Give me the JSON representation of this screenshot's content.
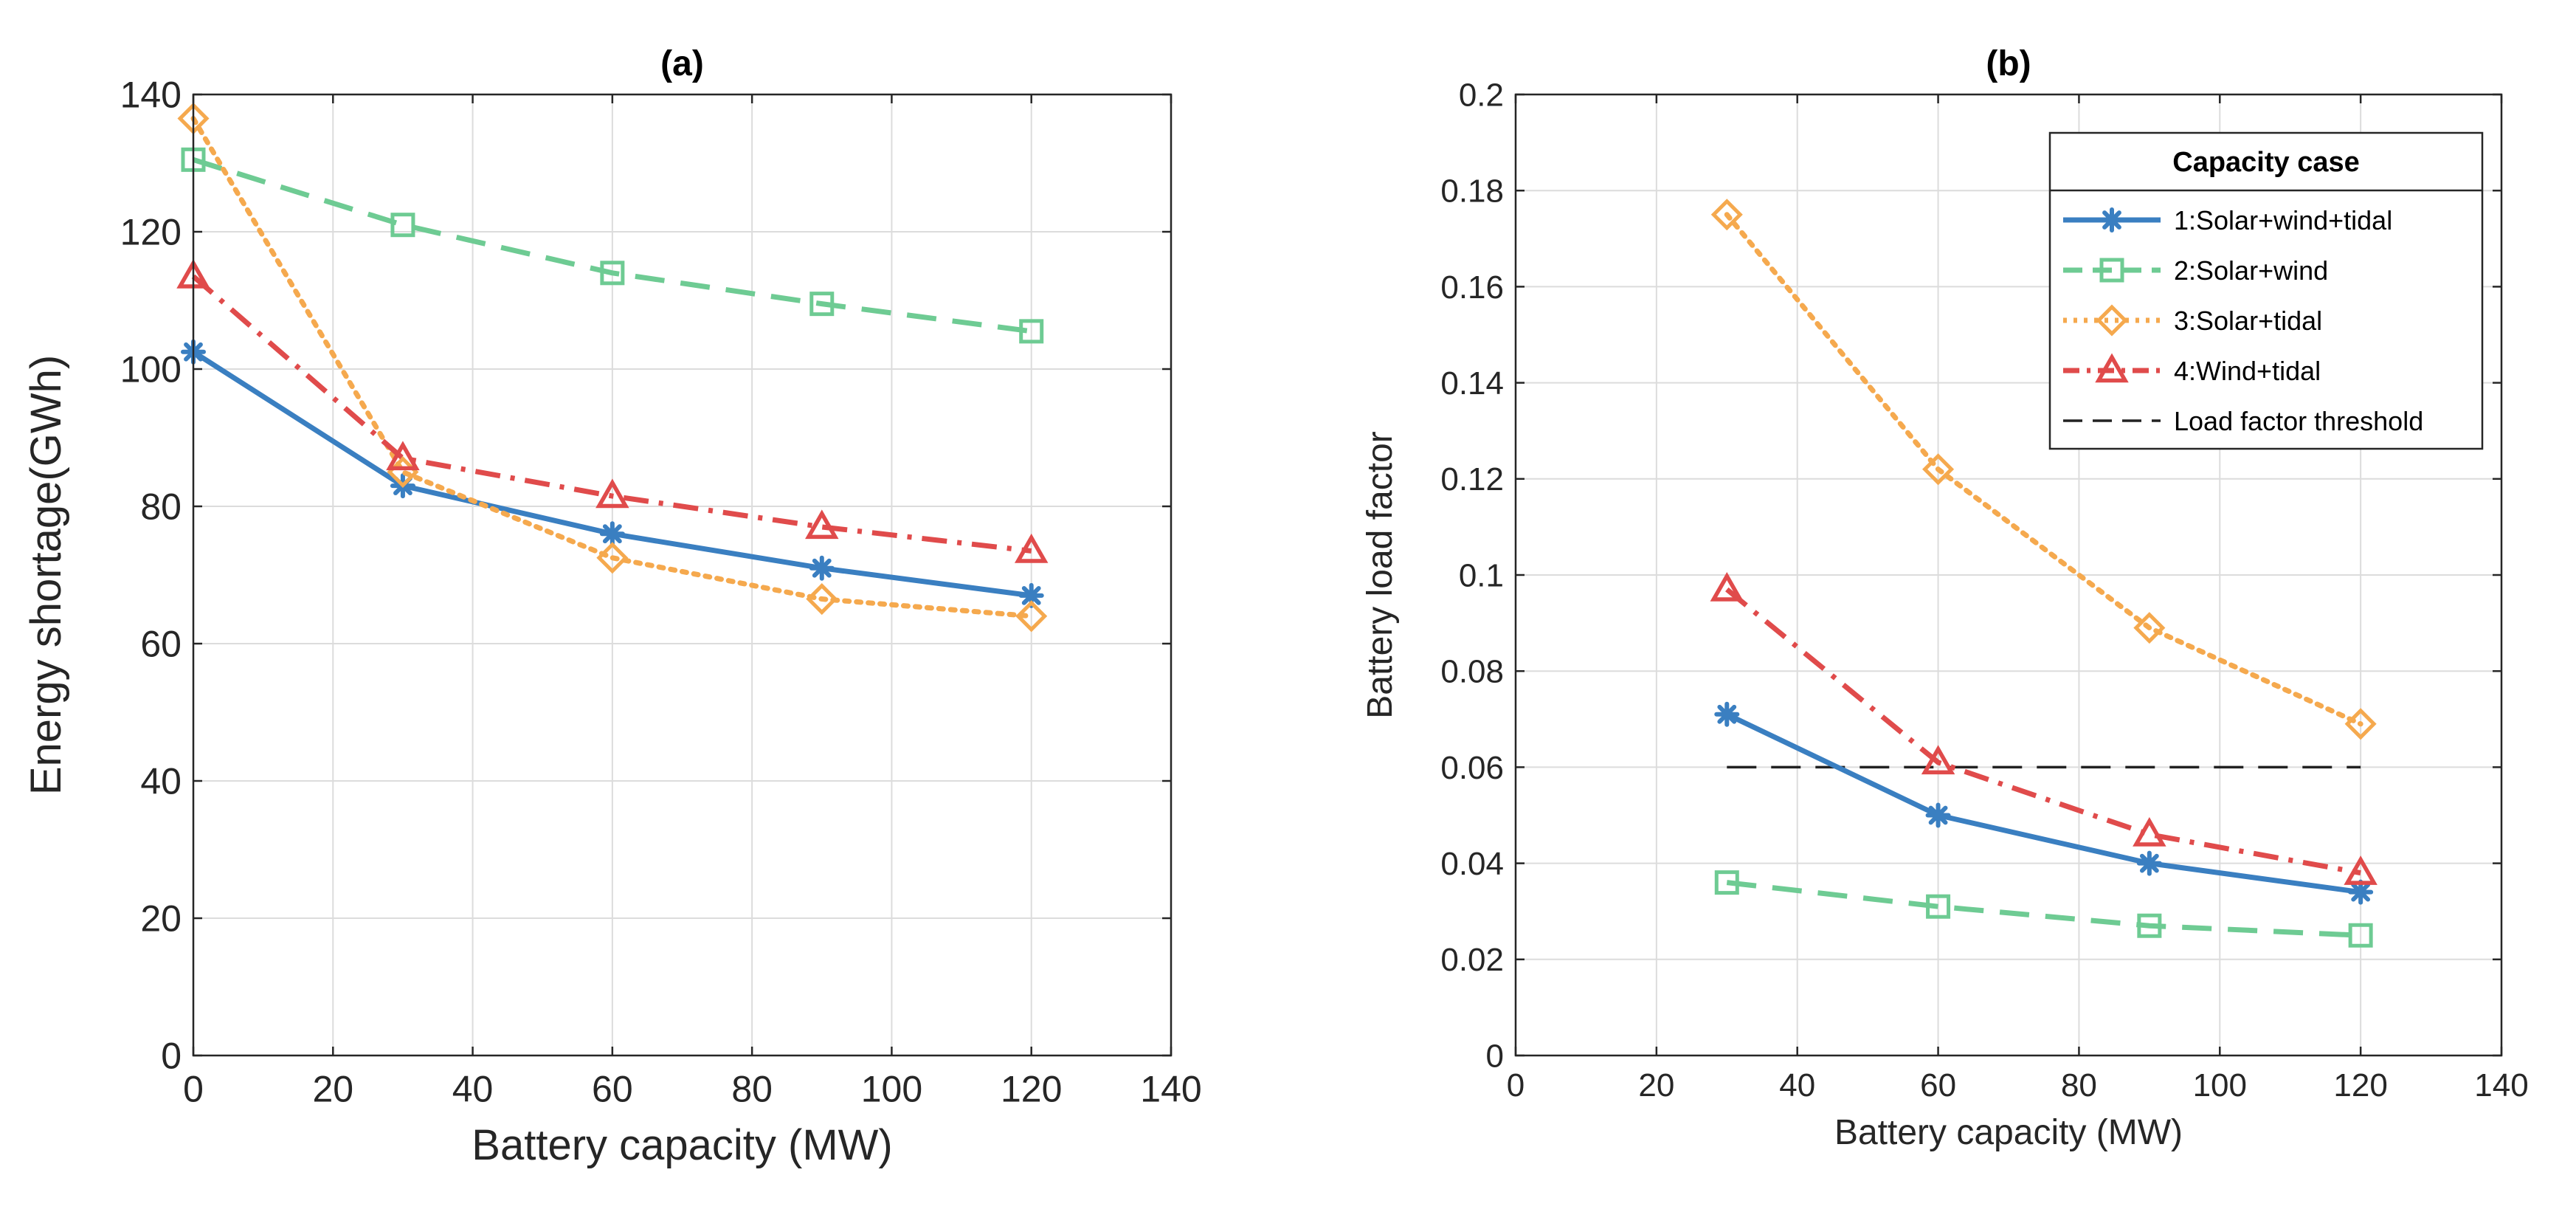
{
  "chart_data": [
    {
      "id": "a",
      "type": "line",
      "title": "(a)",
      "xlabel": "Battery capacity (MW)",
      "ylabel": "Energy shortage(GWh)",
      "xlim": [
        0,
        140
      ],
      "ylim": [
        0,
        140
      ],
      "xticks": [
        0,
        20,
        40,
        60,
        80,
        100,
        120,
        140
      ],
      "yticks": [
        0,
        20,
        40,
        60,
        80,
        100,
        120,
        140
      ],
      "xtick_labels": [
        "0",
        "20",
        "40",
        "60",
        "80",
        "100",
        "120",
        "140"
      ],
      "ytick_labels": [
        "0",
        "20",
        "40",
        "60",
        "80",
        "100",
        "120",
        "140"
      ],
      "grid": true,
      "x": [
        0,
        30,
        60,
        90,
        120
      ],
      "series": [
        {
          "name": "1:Solar+wind+tidal",
          "values": [
            102.5,
            83,
            76,
            71,
            67
          ],
          "color": "#3a7fc1",
          "style": "solid",
          "marker": "asterisk"
        },
        {
          "name": "2:Solar+wind",
          "values": [
            130.5,
            121,
            114,
            109.5,
            105.5
          ],
          "color": "#6ecb93",
          "style": "dashed",
          "marker": "square"
        },
        {
          "name": "3:Solar+tidal",
          "values": [
            136.5,
            85,
            72.5,
            66.5,
            64
          ],
          "color": "#f5a94e",
          "style": "dotted",
          "marker": "diamond"
        },
        {
          "name": "4:Wind+tidal",
          "values": [
            113.5,
            87,
            81.5,
            77,
            73.5
          ],
          "color": "#e04b4b",
          "style": "dashdot",
          "marker": "triangle"
        }
      ]
    },
    {
      "id": "b",
      "type": "line",
      "title": "(b)",
      "xlabel": "Battery capacity (MW)",
      "ylabel": "Battery load factor",
      "xlim": [
        0,
        140
      ],
      "ylim": [
        0,
        0.2
      ],
      "xticks": [
        0,
        20,
        40,
        60,
        80,
        100,
        120,
        140
      ],
      "yticks": [
        0,
        0.02,
        0.04,
        0.06,
        0.08,
        0.1,
        0.12,
        0.14,
        0.16,
        0.18,
        0.2
      ],
      "xtick_labels": [
        "0",
        "20",
        "40",
        "60",
        "80",
        "100",
        "120",
        "140"
      ],
      "ytick_labels": [
        "0",
        "0.02",
        "0.04",
        "0.06",
        "0.08",
        "0.1",
        "0.12",
        "0.14",
        "0.16",
        "0.18",
        "0.2"
      ],
      "grid": true,
      "x": [
        30,
        60,
        90,
        120
      ],
      "series": [
        {
          "name": "1:Solar+wind+tidal",
          "values": [
            0.071,
            0.05,
            0.04,
            0.034
          ],
          "color": "#3a7fc1",
          "style": "solid",
          "marker": "asterisk"
        },
        {
          "name": "2:Solar+wind",
          "values": [
            0.036,
            0.031,
            0.027,
            0.025
          ],
          "color": "#6ecb93",
          "style": "dashed",
          "marker": "square"
        },
        {
          "name": "3:Solar+tidal",
          "values": [
            0.175,
            0.122,
            0.089,
            0.069
          ],
          "color": "#f5a94e",
          "style": "dotted",
          "marker": "diamond"
        },
        {
          "name": "4:Wind+tidal",
          "values": [
            0.097,
            0.061,
            0.046,
            0.038
          ],
          "color": "#e04b4b",
          "style": "dashdot",
          "marker": "triangle"
        }
      ],
      "threshold": {
        "name": "Load factor threshold",
        "value": 0.06,
        "x_range": [
          30,
          120
        ],
        "color": "#222222",
        "style": "longdash"
      },
      "legend": {
        "title": "Capacity case",
        "placement": "top-right",
        "entries": [
          "1:Solar+wind+tidal",
          "2:Solar+wind",
          "3:Solar+tidal",
          "4:Wind+tidal",
          "Load factor threshold"
        ]
      }
    }
  ]
}
